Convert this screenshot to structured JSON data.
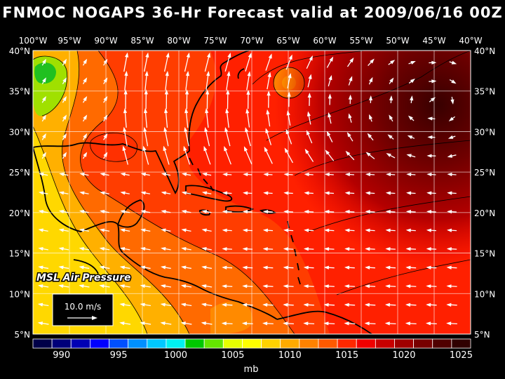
{
  "title": "FNMOC NOGAPS 36-Hr Forecast valid at 2009/06/16 00Z",
  "field_label": "MSL Air Pressure",
  "vector_scale_label": "10.0 m/s",
  "colorbar": {
    "unit": "mb",
    "tick_labels": [
      "990",
      "995",
      "1000",
      "1005",
      "1010",
      "1015",
      "1020",
      "1025"
    ],
    "colors": [
      "#000048",
      "#00007a",
      "#0000b4",
      "#0000ff",
      "#0050ff",
      "#0090ff",
      "#00c8ff",
      "#00f0f0",
      "#00c800",
      "#64e600",
      "#e6ff00",
      "#ffff00",
      "#ffd200",
      "#ffaa00",
      "#ff8200",
      "#ff5a00",
      "#ff2800",
      "#f00000",
      "#c80000",
      "#a00000",
      "#780000",
      "#500000",
      "#300000"
    ]
  },
  "map": {
    "lon_labels_top": [
      "100°W",
      "95°W",
      "90°W",
      "85°W",
      "80°W",
      "75°W",
      "70°W",
      "65°W",
      "60°W",
      "55°W",
      "50°W",
      "45°W",
      "40°W"
    ],
    "lat_labels": [
      "40°N",
      "35°N",
      "30°N",
      "25°N",
      "20°N",
      "15°N",
      "10°N",
      "5°N"
    ],
    "lon_range": [
      -100,
      -40
    ],
    "lat_range": [
      5,
      40
    ]
  }
}
